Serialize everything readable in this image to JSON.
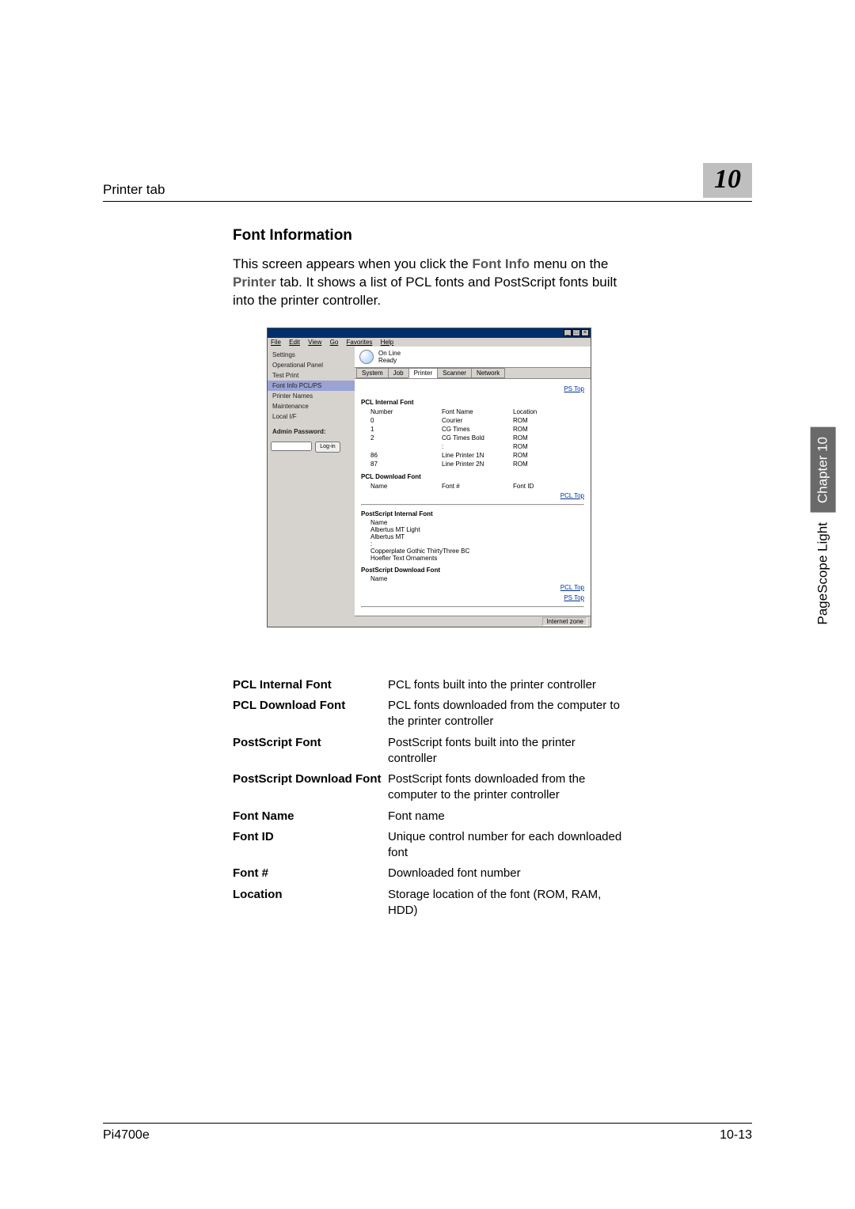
{
  "header": {
    "section": "Printer tab",
    "chapter_number": "10"
  },
  "side_tab": {
    "label": "PageScope Light",
    "chapter": "Chapter 10"
  },
  "content": {
    "heading": "Font Information",
    "intro_pre": "This screen appears when you click the ",
    "intro_bold1": "Font Info",
    "intro_mid": " menu on the ",
    "intro_bold2": "Printer",
    "intro_post": " tab. It shows a list of PCL fonts and PostScript fonts built into the printer controller."
  },
  "screenshot": {
    "menubar": [
      "File",
      "Edit",
      "View",
      "Go",
      "Favorites",
      "Help"
    ],
    "status_line1": "On Line",
    "status_line2": "Ready",
    "tabs": [
      "System",
      "Job",
      "Printer",
      "Scanner",
      "Network"
    ],
    "active_tab": "Printer",
    "sidebar": {
      "items": [
        "Settings",
        "Operational Panel",
        "Test Print",
        "Font Info PCL/PS",
        "Printer Names",
        "Maintenance",
        "Local I/F"
      ],
      "active_index": 3,
      "admin_label": "Admin Password:",
      "login_btn": "Log-in"
    },
    "toplinks": "PS Top",
    "pcl_internal": {
      "title": "PCL Internal Font",
      "cols": [
        "Number",
        "Font Name",
        "Location"
      ],
      "rows": [
        [
          "0",
          "Courier",
          "ROM"
        ],
        [
          "1",
          "CG Times",
          "ROM"
        ],
        [
          "2",
          "CG Times Bold",
          "ROM"
        ],
        [
          "",
          ":",
          "ROM"
        ],
        [
          "86",
          "Line Printer 1N",
          "ROM"
        ],
        [
          "87",
          "Line Printer 2N",
          "ROM"
        ]
      ]
    },
    "pcl_download": {
      "title": "PCL Download Font",
      "cols": [
        "Name",
        "Font #",
        "Font ID"
      ],
      "link": "PCL Top"
    },
    "ps_internal": {
      "title": "PostScript Internal Font",
      "col": "Name",
      "rows": [
        "Albertus MT Light",
        "Albertus MT",
        ":",
        "Copperplate Gothic ThirtyThree BC",
        "Hoefler Text Ornaments"
      ]
    },
    "ps_download": {
      "title": "PostScript Download Font",
      "col": "Name",
      "link1": "PCL Top",
      "link2": "PS Top"
    },
    "statusbar": "Internet zone"
  },
  "definitions": [
    {
      "term": "PCL Internal Font",
      "desc": "PCL fonts built into the printer controller"
    },
    {
      "term": "PCL Download Font",
      "desc": "PCL fonts downloaded from the computer to the printer controller"
    },
    {
      "term": "PostScript Font",
      "desc": "PostScript fonts built into the printer controller"
    },
    {
      "term": "PostScript Download Font",
      "desc": "PostScript fonts downloaded from the computer to the printer controller"
    },
    {
      "term": "Font Name",
      "desc": "Font name"
    },
    {
      "term": "Font ID",
      "desc": "Unique control number for each downloaded font"
    },
    {
      "term": "Font #",
      "desc": "Downloaded font number"
    },
    {
      "term": "Location",
      "desc": "Storage location of the font (ROM, RAM, HDD)"
    }
  ],
  "footer": {
    "left": "Pi4700e",
    "right": "10-13"
  }
}
